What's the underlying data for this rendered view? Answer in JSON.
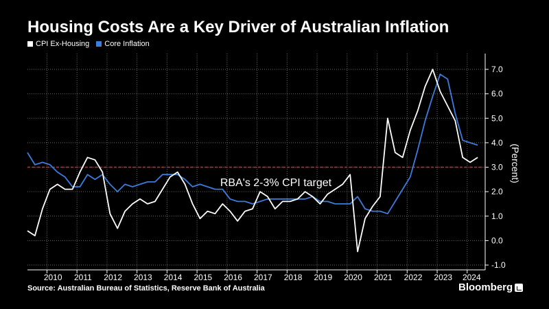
{
  "title": "Housing Costs Are a Key Driver of Australian Inflation",
  "source": "Source: Australian Bureau of Statistics, Reserve Bank of Australia",
  "brand": "Bloomberg",
  "colors": {
    "series1": "#ffffff",
    "series2": "#3b7ddd",
    "target": "#e0262b",
    "grid": "#6a6a6a",
    "background": "#000000"
  },
  "chart_data": {
    "type": "line",
    "title": "Housing Costs Are a Key Driver of Australian Inflation",
    "ylabel": "(Percent)",
    "xlabel": "",
    "ylim": [
      -1.0,
      7.5
    ],
    "xlim": [
      2009.3,
      2024.55
    ],
    "yticks": [
      -1.0,
      0.0,
      1.0,
      2.0,
      3.0,
      4.0,
      5.0,
      6.0,
      7.0
    ],
    "ytick_labels": [
      "-1.0",
      "0.0",
      "1.0",
      "2.0",
      "3.0",
      "4.0",
      "5.0",
      "6.0",
      "7.0"
    ],
    "xtick_labels": [
      "2010",
      "2011",
      "2012",
      "2013",
      "2014",
      "2015",
      "2016",
      "2017",
      "2018",
      "2019",
      "2020",
      "2021",
      "2022",
      "2023",
      "2024"
    ],
    "xtick_positions": [
      2010.15,
      2011.15,
      2012.15,
      2013.15,
      2014.15,
      2015.15,
      2016.15,
      2017.15,
      2018.15,
      2019.15,
      2020.15,
      2021.15,
      2022.15,
      2023.15,
      2024.1
    ],
    "legend_position": "top-left",
    "annotation": {
      "text": "RBA's 2-3% CPI target",
      "y": 3.0
    },
    "series": [
      {
        "name": "CPI Ex-Housing",
        "x": [
          2009.3,
          2009.55,
          2009.8,
          2010.05,
          2010.3,
          2010.55,
          2010.8,
          2011.05,
          2011.3,
          2011.55,
          2011.8,
          2012.05,
          2012.3,
          2012.55,
          2012.8,
          2013.05,
          2013.3,
          2013.55,
          2013.8,
          2014.05,
          2014.3,
          2014.55,
          2014.8,
          2015.05,
          2015.3,
          2015.55,
          2015.8,
          2016.05,
          2016.3,
          2016.55,
          2016.8,
          2017.05,
          2017.3,
          2017.55,
          2017.8,
          2018.05,
          2018.3,
          2018.55,
          2018.8,
          2019.05,
          2019.3,
          2019.55,
          2019.8,
          2020.05,
          2020.3,
          2020.55,
          2020.8,
          2021.05,
          2021.3,
          2021.55,
          2021.8,
          2022.05,
          2022.3,
          2022.55,
          2022.8,
          2023.05,
          2023.3,
          2023.55,
          2023.8,
          2024.05,
          2024.3
        ],
        "values": [
          0.4,
          0.2,
          1.3,
          2.1,
          2.3,
          2.1,
          2.1,
          2.8,
          3.4,
          3.3,
          2.8,
          1.1,
          0.5,
          1.2,
          1.5,
          1.7,
          1.5,
          1.6,
          2.1,
          2.6,
          2.8,
          2.3,
          1.5,
          0.9,
          1.2,
          1.1,
          1.5,
          1.2,
          0.8,
          1.2,
          1.3,
          2.0,
          1.8,
          1.3,
          1.6,
          1.6,
          1.7,
          2.0,
          1.8,
          1.5,
          1.9,
          2.1,
          2.3,
          2.7,
          -0.45,
          0.9,
          1.4,
          1.8,
          5.0,
          3.6,
          3.4,
          4.5,
          5.3,
          6.3,
          7.0,
          6.1,
          5.5,
          4.9,
          3.4,
          3.2,
          3.4
        ]
      },
      {
        "name": "Core Inflation",
        "x": [
          2009.3,
          2009.55,
          2009.8,
          2010.05,
          2010.3,
          2010.55,
          2010.8,
          2011.05,
          2011.3,
          2011.55,
          2011.8,
          2012.05,
          2012.3,
          2012.55,
          2012.8,
          2013.05,
          2013.3,
          2013.55,
          2013.8,
          2014.05,
          2014.3,
          2014.55,
          2014.8,
          2015.05,
          2015.3,
          2015.55,
          2015.8,
          2016.05,
          2016.3,
          2016.55,
          2016.8,
          2017.05,
          2017.3,
          2017.55,
          2017.8,
          2018.05,
          2018.3,
          2018.55,
          2018.8,
          2019.05,
          2019.3,
          2019.55,
          2019.8,
          2020.05,
          2020.3,
          2020.55,
          2020.8,
          2021.05,
          2021.3,
          2021.55,
          2021.8,
          2022.05,
          2022.3,
          2022.55,
          2022.8,
          2023.05,
          2023.3,
          2023.55,
          2023.8,
          2024.05,
          2024.3
        ],
        "values": [
          3.6,
          3.1,
          3.2,
          3.1,
          2.8,
          2.6,
          2.2,
          2.2,
          2.7,
          2.5,
          2.7,
          2.3,
          2.0,
          2.3,
          2.2,
          2.3,
          2.4,
          2.4,
          2.7,
          2.7,
          2.7,
          2.5,
          2.2,
          2.3,
          2.2,
          2.1,
          2.1,
          1.7,
          1.6,
          1.6,
          1.5,
          1.6,
          1.7,
          1.7,
          1.7,
          1.7,
          1.7,
          1.7,
          1.8,
          1.6,
          1.6,
          1.5,
          1.5,
          1.5,
          1.8,
          1.3,
          1.2,
          1.2,
          1.1,
          1.6,
          2.1,
          2.6,
          3.7,
          4.9,
          5.9,
          6.8,
          6.6,
          5.2,
          4.1,
          4.0,
          3.9
        ]
      }
    ]
  }
}
